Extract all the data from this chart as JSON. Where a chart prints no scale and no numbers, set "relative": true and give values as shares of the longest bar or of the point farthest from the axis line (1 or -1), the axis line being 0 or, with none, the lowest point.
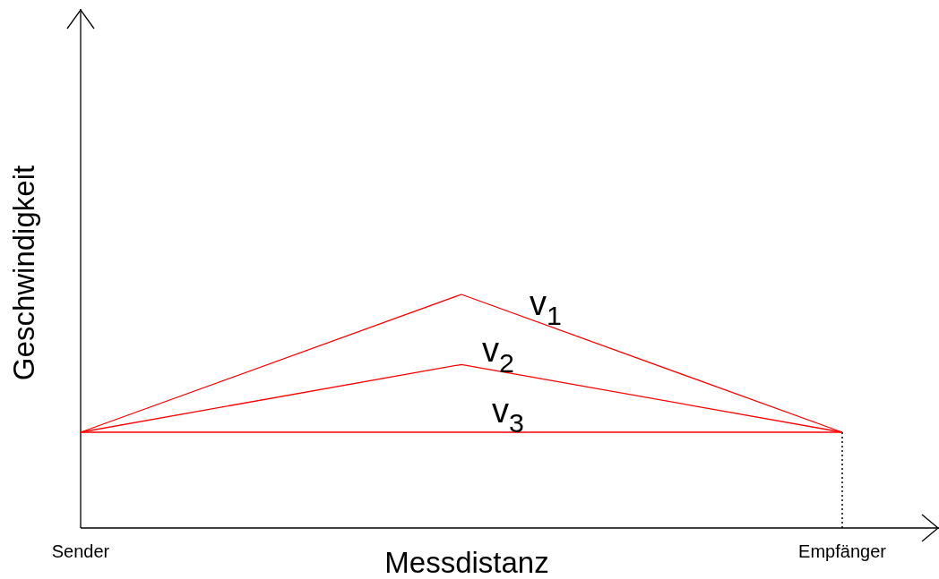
{
  "chart_data": {
    "type": "line",
    "xlabel": "Messdistanz",
    "ylabel": "Geschwindigkeit",
    "categories": [
      "Sender",
      null,
      "Empfänger"
    ],
    "relative": true,
    "series": [
      {
        "name": "v$_{1}$",
        "color": "#ff0000",
        "values": [
          0.41,
          1,
          0.41
        ]
      },
      {
        "name": "v$_{2}$",
        "color": "#ff0000",
        "values": [
          0.41,
          0.7,
          0.41
        ]
      },
      {
        "name": "v$_{3}$",
        "color": "#ff0000",
        "values": [
          0.41,
          0.41,
          0.41
        ]
      }
    ],
    "ref_lines": [
      {
        "axis": "x",
        "value": "Empfänger",
        "color": "#000000",
        "line_style": "dotted"
      }
    ]
  }
}
